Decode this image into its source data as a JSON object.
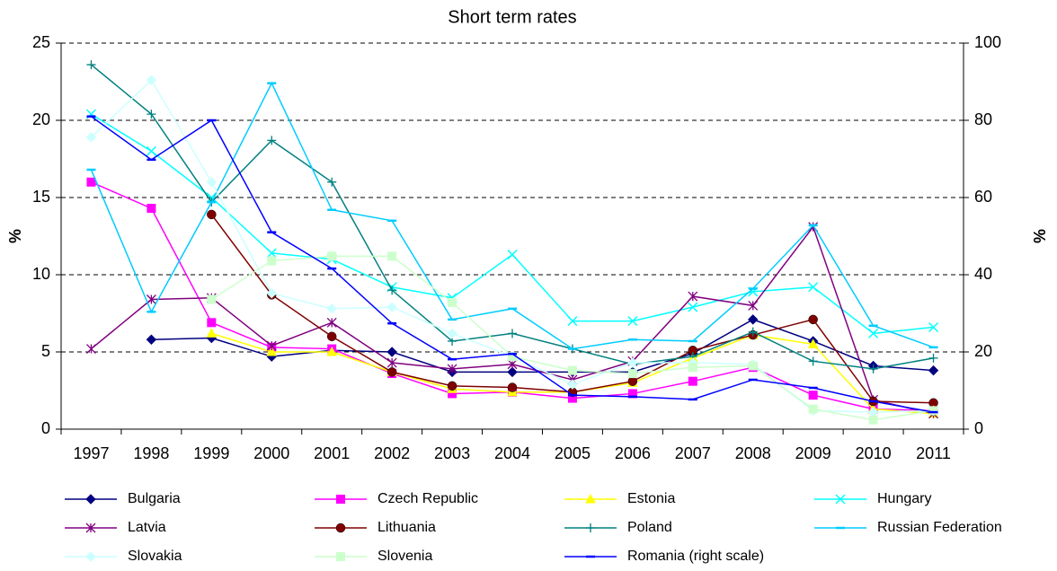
{
  "chart_data": {
    "type": "line",
    "title": "Short term rates",
    "y_label": "%",
    "y2_label": "%",
    "categories": [
      "1997",
      "1998",
      "1999",
      "2000",
      "2001",
      "2002",
      "2003",
      "2004",
      "2005",
      "2006",
      "2007",
      "2008",
      "2009",
      "2010",
      "2011"
    ],
    "ylim": [
      0,
      25
    ],
    "yticks": [
      0,
      5,
      10,
      15,
      20,
      25
    ],
    "y2lim": [
      0,
      100
    ],
    "y2ticks": [
      0,
      20,
      40,
      60,
      80,
      100
    ],
    "grid": true,
    "legend": "bottom",
    "series": [
      {
        "name": "Bulgaria",
        "color": "#000080",
        "marker": "diamond",
        "values": [
          null,
          5.8,
          5.9,
          4.7,
          5.1,
          5.0,
          3.7,
          3.7,
          3.7,
          3.7,
          4.9,
          7.1,
          5.7,
          4.1,
          3.8
        ]
      },
      {
        "name": "Czech Republic",
        "color": "#ff00ff",
        "marker": "square",
        "values": [
          16.0,
          14.3,
          6.9,
          5.3,
          5.2,
          3.6,
          2.3,
          2.4,
          2.0,
          2.3,
          3.1,
          4.0,
          2.2,
          1.3,
          1.2
        ]
      },
      {
        "name": "Estonia",
        "color": "#ffff00",
        "marker": "triangle",
        "values": [
          null,
          null,
          6.2,
          5.0,
          5.0,
          3.7,
          2.6,
          2.4,
          2.4,
          3.0,
          4.6,
          6.1,
          5.5,
          1.3,
          1.0
        ]
      },
      {
        "name": "Hungary",
        "color": "#00ffff",
        "marker": "x",
        "values": [
          20.4,
          18.0,
          15.0,
          11.4,
          11.0,
          9.2,
          8.5,
          11.3,
          7.0,
          7.0,
          7.9,
          8.9,
          9.2,
          6.2,
          6.6
        ]
      },
      {
        "name": "Latvia",
        "color": "#800080",
        "marker": "asterisk",
        "values": [
          5.2,
          8.4,
          8.5,
          5.4,
          6.9,
          4.3,
          3.9,
          4.2,
          3.2,
          4.4,
          8.6,
          8.0,
          13.1,
          1.9,
          1.0
        ]
      },
      {
        "name": "Lithuania",
        "color": "#800000",
        "marker": "circle",
        "values": [
          null,
          null,
          13.9,
          8.7,
          6.0,
          3.7,
          2.8,
          2.7,
          2.4,
          3.1,
          5.1,
          6.1,
          7.1,
          1.8,
          1.7
        ]
      },
      {
        "name": "Poland",
        "color": "#008080",
        "marker": "plus",
        "values": [
          23.6,
          20.4,
          14.7,
          18.7,
          16.0,
          9.0,
          5.7,
          6.2,
          5.2,
          4.2,
          4.7,
          6.3,
          4.4,
          3.9,
          4.6
        ]
      },
      {
        "name": "Russian Federation",
        "color": "#00ccff",
        "marker": "dash",
        "values": [
          16.8,
          7.6,
          14.7,
          22.4,
          14.2,
          13.5,
          7.1,
          7.8,
          5.2,
          5.8,
          5.7,
          9.1,
          13.2,
          6.7,
          5.3
        ]
      },
      {
        "name": "Slovakia",
        "color": "#ccffff",
        "marker": "diamond",
        "values": [
          18.9,
          22.6,
          16.0,
          8.8,
          7.8,
          7.9,
          6.2,
          4.7,
          2.9,
          4.3,
          4.3,
          4.2,
          1.2,
          1.1,
          1.2
        ]
      },
      {
        "name": "Slovenia",
        "color": "#ccffcc",
        "marker": "square",
        "values": [
          null,
          null,
          8.4,
          10.9,
          11.2,
          11.2,
          8.2,
          4.7,
          3.8,
          3.6,
          4.0,
          4.1,
          1.3,
          0.6,
          1.2
        ]
      },
      {
        "name": "Romania (right scale)",
        "color": "#0000ff",
        "marker": "dash",
        "axis": "y2",
        "values": [
          81,
          69.8,
          80,
          51,
          41.6,
          27.4,
          18.1,
          19.5,
          8.8,
          8.4,
          7.7,
          12.8,
          10.7,
          7.2,
          4.4
        ]
      }
    ]
  }
}
